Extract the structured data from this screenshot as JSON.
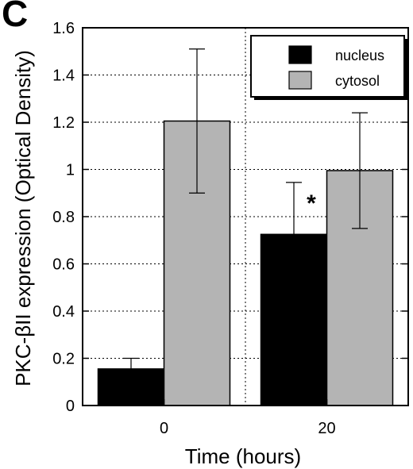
{
  "panel_label": "C",
  "chart_data": {
    "type": "bar",
    "title": "",
    "xlabel": "Time (hours)",
    "ylabel": "PKC-βII  expression (Optical Density)",
    "categories": [
      "0",
      "20"
    ],
    "ylim": [
      0,
      1.6
    ],
    "yticks": [
      "0",
      "0.2",
      "0.4",
      "0.6",
      "0.8",
      "1",
      "1.2",
      "1.4",
      "1.6"
    ],
    "grid": "dotted horizontal and vertical",
    "legend_position": "top-right",
    "series": [
      {
        "name": "nucleus",
        "color": "#000000",
        "values": [
          0.155,
          0.725
        ],
        "error": [
          0.045,
          0.22
        ]
      },
      {
        "name": "cytosol",
        "color": "#b4b4b4",
        "values": [
          1.205,
          0.995
        ],
        "error": [
          0.305,
          0.245
        ]
      }
    ],
    "annotations": [
      {
        "text": "*",
        "category": "20",
        "series": "nucleus"
      }
    ]
  }
}
